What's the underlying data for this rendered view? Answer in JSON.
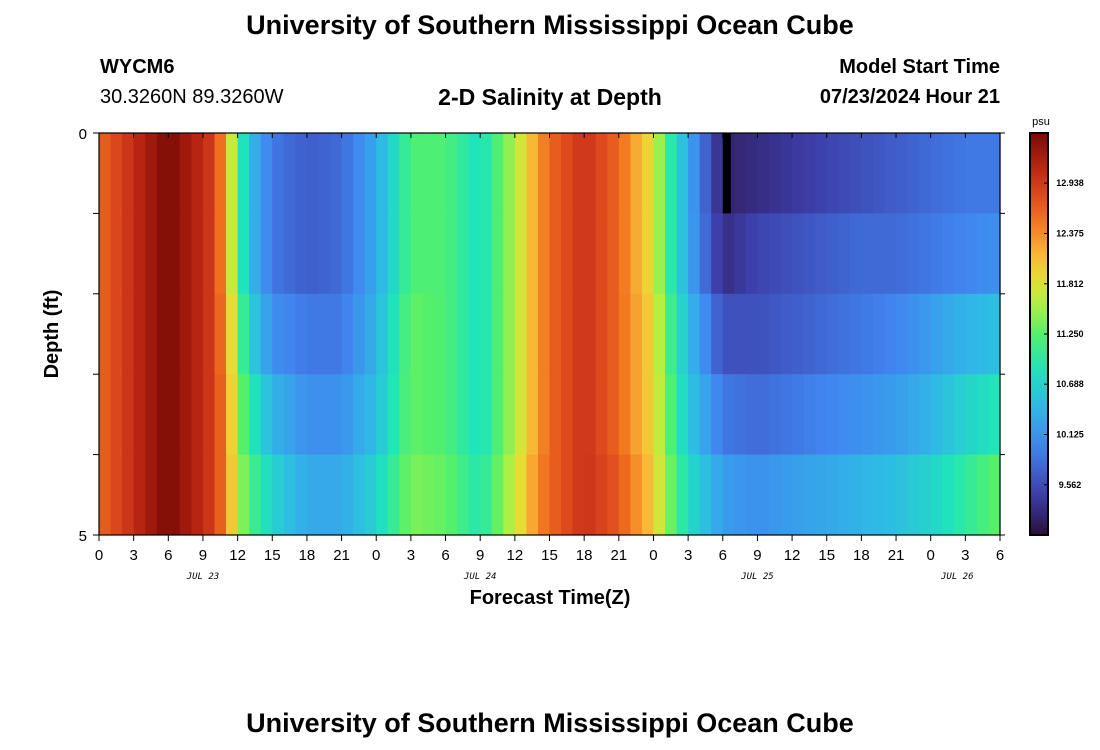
{
  "header": {
    "title": "University of Southern Mississippi Ocean Cube",
    "station": "WYCM6",
    "coordinates": "30.3260N  89.3260W",
    "subtitle": "2-D Salinity at Depth",
    "start_label": "Model Start Time",
    "start_value": "07/23/2024 Hour 21"
  },
  "footer": {
    "title": "University of Southern Mississippi Ocean Cube"
  },
  "chart_data": {
    "type": "heatmap",
    "title": "2-D Salinity at Depth",
    "xlabel": "Forecast Time(Z)",
    "ylabel": "Depth (ft)",
    "x_tick_labels": [
      "0",
      "3",
      "6",
      "9",
      "12",
      "15",
      "18",
      "21",
      "0",
      "3",
      "6",
      "9",
      "12",
      "15",
      "18",
      "21",
      "0",
      "3",
      "6",
      "9",
      "12",
      "15",
      "18",
      "21",
      "0",
      "3",
      "6"
    ],
    "date_labels": [
      "JUL 23",
      "JUL 24",
      "JUL 25",
      "JUL 26"
    ],
    "y_tick_labels": [
      "0",
      "5"
    ],
    "xlim_hours": [
      0,
      78
    ],
    "ylim": [
      0,
      5
    ],
    "colorbar": {
      "unit": "psu",
      "tick_labels": [
        "12.938",
        "12.375",
        "11.812",
        "11.250",
        "10.688",
        "10.125",
        "9.562"
      ],
      "vmin": 9.0,
      "vmax": 13.5
    },
    "depth_layers": [
      0.5,
      1.5,
      2.5,
      3.5,
      4.5
    ],
    "time_hours": [
      0,
      6,
      10,
      11,
      12,
      13,
      15,
      18,
      21,
      24,
      27,
      30,
      33,
      36,
      38,
      39,
      42,
      45,
      48,
      49,
      51,
      54,
      57,
      60,
      63,
      66,
      69,
      72,
      75,
      78
    ],
    "salinity": [
      [
        12.6,
        13.5,
        12.9,
        12.2,
        11.2,
        10.5,
        9.9,
        9.7,
        9.8,
        10.3,
        11.2,
        11.2,
        10.8,
        11.6,
        12.3,
        12.6,
        13.0,
        12.6,
        11.8,
        11.2,
        10.3,
        9.2,
        9.3,
        9.4,
        9.5,
        9.6,
        9.7,
        9.8,
        9.9,
        9.9
      ],
      [
        12.6,
        13.5,
        12.9,
        12.2,
        11.2,
        10.5,
        9.9,
        9.7,
        9.8,
        10.3,
        11.2,
        11.2,
        10.8,
        11.6,
        12.3,
        12.6,
        13.0,
        12.6,
        11.8,
        11.2,
        10.3,
        9.3,
        9.5,
        9.6,
        9.7,
        9.8,
        9.8,
        9.9,
        10.0,
        10.1
      ],
      [
        12.6,
        13.5,
        12.9,
        12.3,
        11.4,
        10.7,
        10.1,
        9.9,
        9.9,
        10.4,
        11.3,
        11.2,
        10.8,
        11.6,
        12.3,
        12.6,
        13.0,
        12.6,
        11.9,
        11.3,
        10.5,
        9.6,
        9.6,
        9.7,
        9.8,
        9.9,
        10.0,
        10.2,
        10.4,
        10.5
      ],
      [
        12.6,
        13.5,
        12.9,
        12.4,
        11.5,
        11.0,
        10.4,
        10.1,
        10.1,
        10.5,
        11.3,
        11.2,
        10.8,
        11.6,
        12.3,
        12.6,
        13.0,
        12.6,
        11.9,
        11.4,
        10.6,
        9.9,
        9.8,
        9.9,
        10.0,
        10.1,
        10.2,
        10.4,
        10.7,
        10.9
      ],
      [
        12.6,
        13.5,
        12.9,
        12.4,
        11.6,
        11.2,
        10.7,
        10.3,
        10.3,
        10.7,
        11.4,
        11.3,
        10.9,
        11.7,
        12.4,
        12.6,
        13.0,
        12.7,
        12.0,
        11.5,
        10.8,
        10.2,
        10.1,
        10.2,
        10.3,
        10.4,
        10.5,
        10.7,
        11.0,
        11.3
      ]
    ],
    "black_band_hours": [
      54,
      54.7
    ],
    "black_band_depth": [
      0,
      1
    ]
  }
}
